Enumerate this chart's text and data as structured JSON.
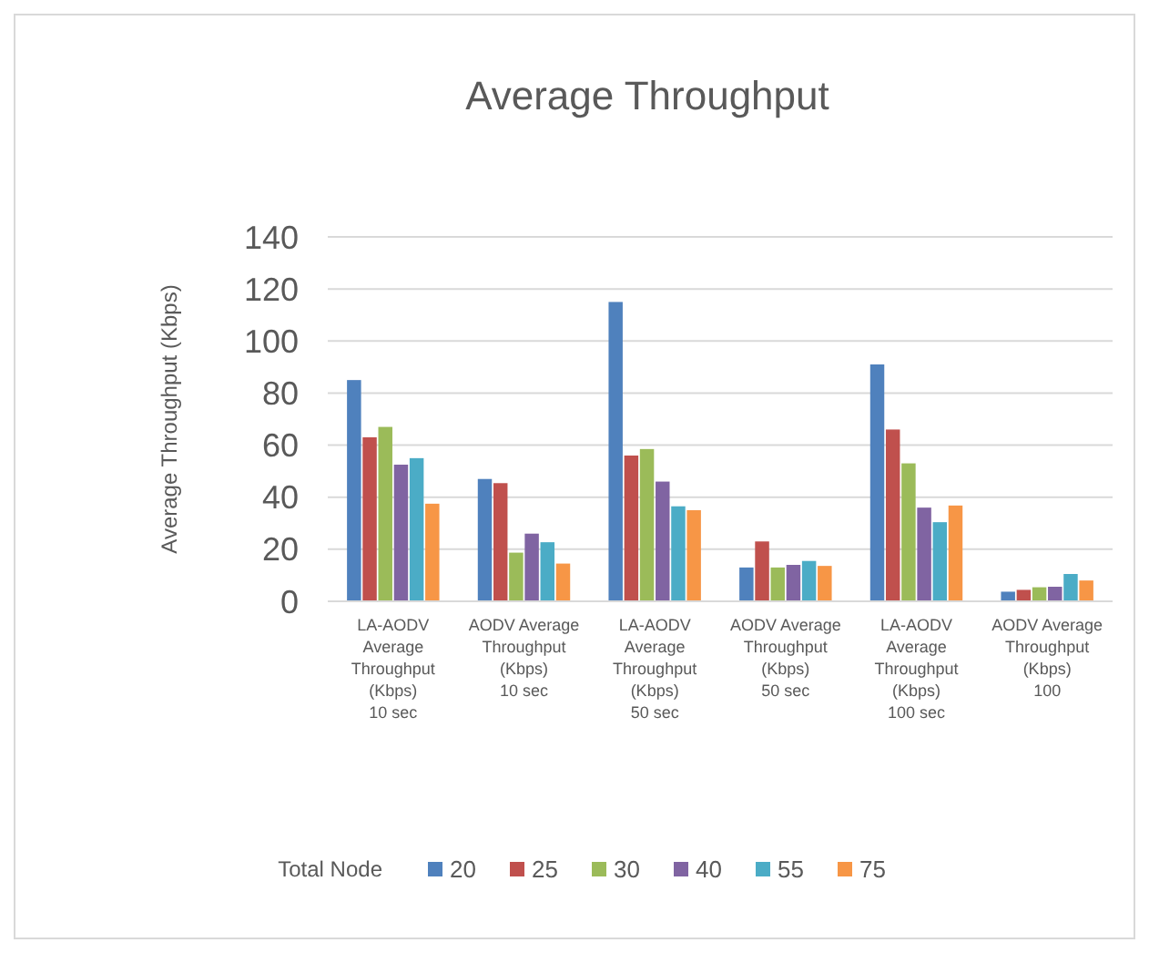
{
  "chart_data": {
    "type": "bar",
    "title": "Average Throughput",
    "ylabel": "Average Throughput (Kbps)",
    "legend_title": "Total Node",
    "categories": [
      "LA-AODV\nAverage\nThroughput\n(Kbps)\n10 sec",
      "AODV Average\nThroughput\n(Kbps)\n10 sec",
      "LA-AODV\nAverage\nThroughput\n(Kbps)\n50 sec",
      "AODV Average\nThroughput\n(Kbps)\n50 sec",
      "LA-AODV\nAverage\nThroughput\n(Kbps)\n100 sec",
      "AODV Average\nThroughput\n(Kbps)\n100"
    ],
    "series": [
      {
        "name": "20",
        "color": "#4f81bd",
        "values": [
          85,
          47,
          115,
          13,
          91,
          3.7
        ]
      },
      {
        "name": "25",
        "color": "#c0504d",
        "values": [
          63,
          45.4,
          56,
          23,
          66,
          4.4
        ]
      },
      {
        "name": "30",
        "color": "#9bbb59",
        "values": [
          67,
          18.7,
          58.5,
          13,
          53,
          5.4
        ]
      },
      {
        "name": "40",
        "color": "#8064a2",
        "values": [
          52.5,
          26,
          46,
          14,
          36,
          5.6
        ]
      },
      {
        "name": "55",
        "color": "#4bacc6",
        "values": [
          55,
          22.7,
          36.5,
          15.5,
          30.4,
          10.5
        ]
      },
      {
        "name": "75",
        "color": "#f79646",
        "values": [
          37.5,
          14.5,
          35,
          13.6,
          36.8,
          8
        ]
      }
    ],
    "ylim": [
      0,
      140
    ],
    "yticks": [
      0,
      20,
      40,
      60,
      80,
      100,
      120,
      140
    ],
    "grid": "y",
    "legend": "bottom"
  }
}
